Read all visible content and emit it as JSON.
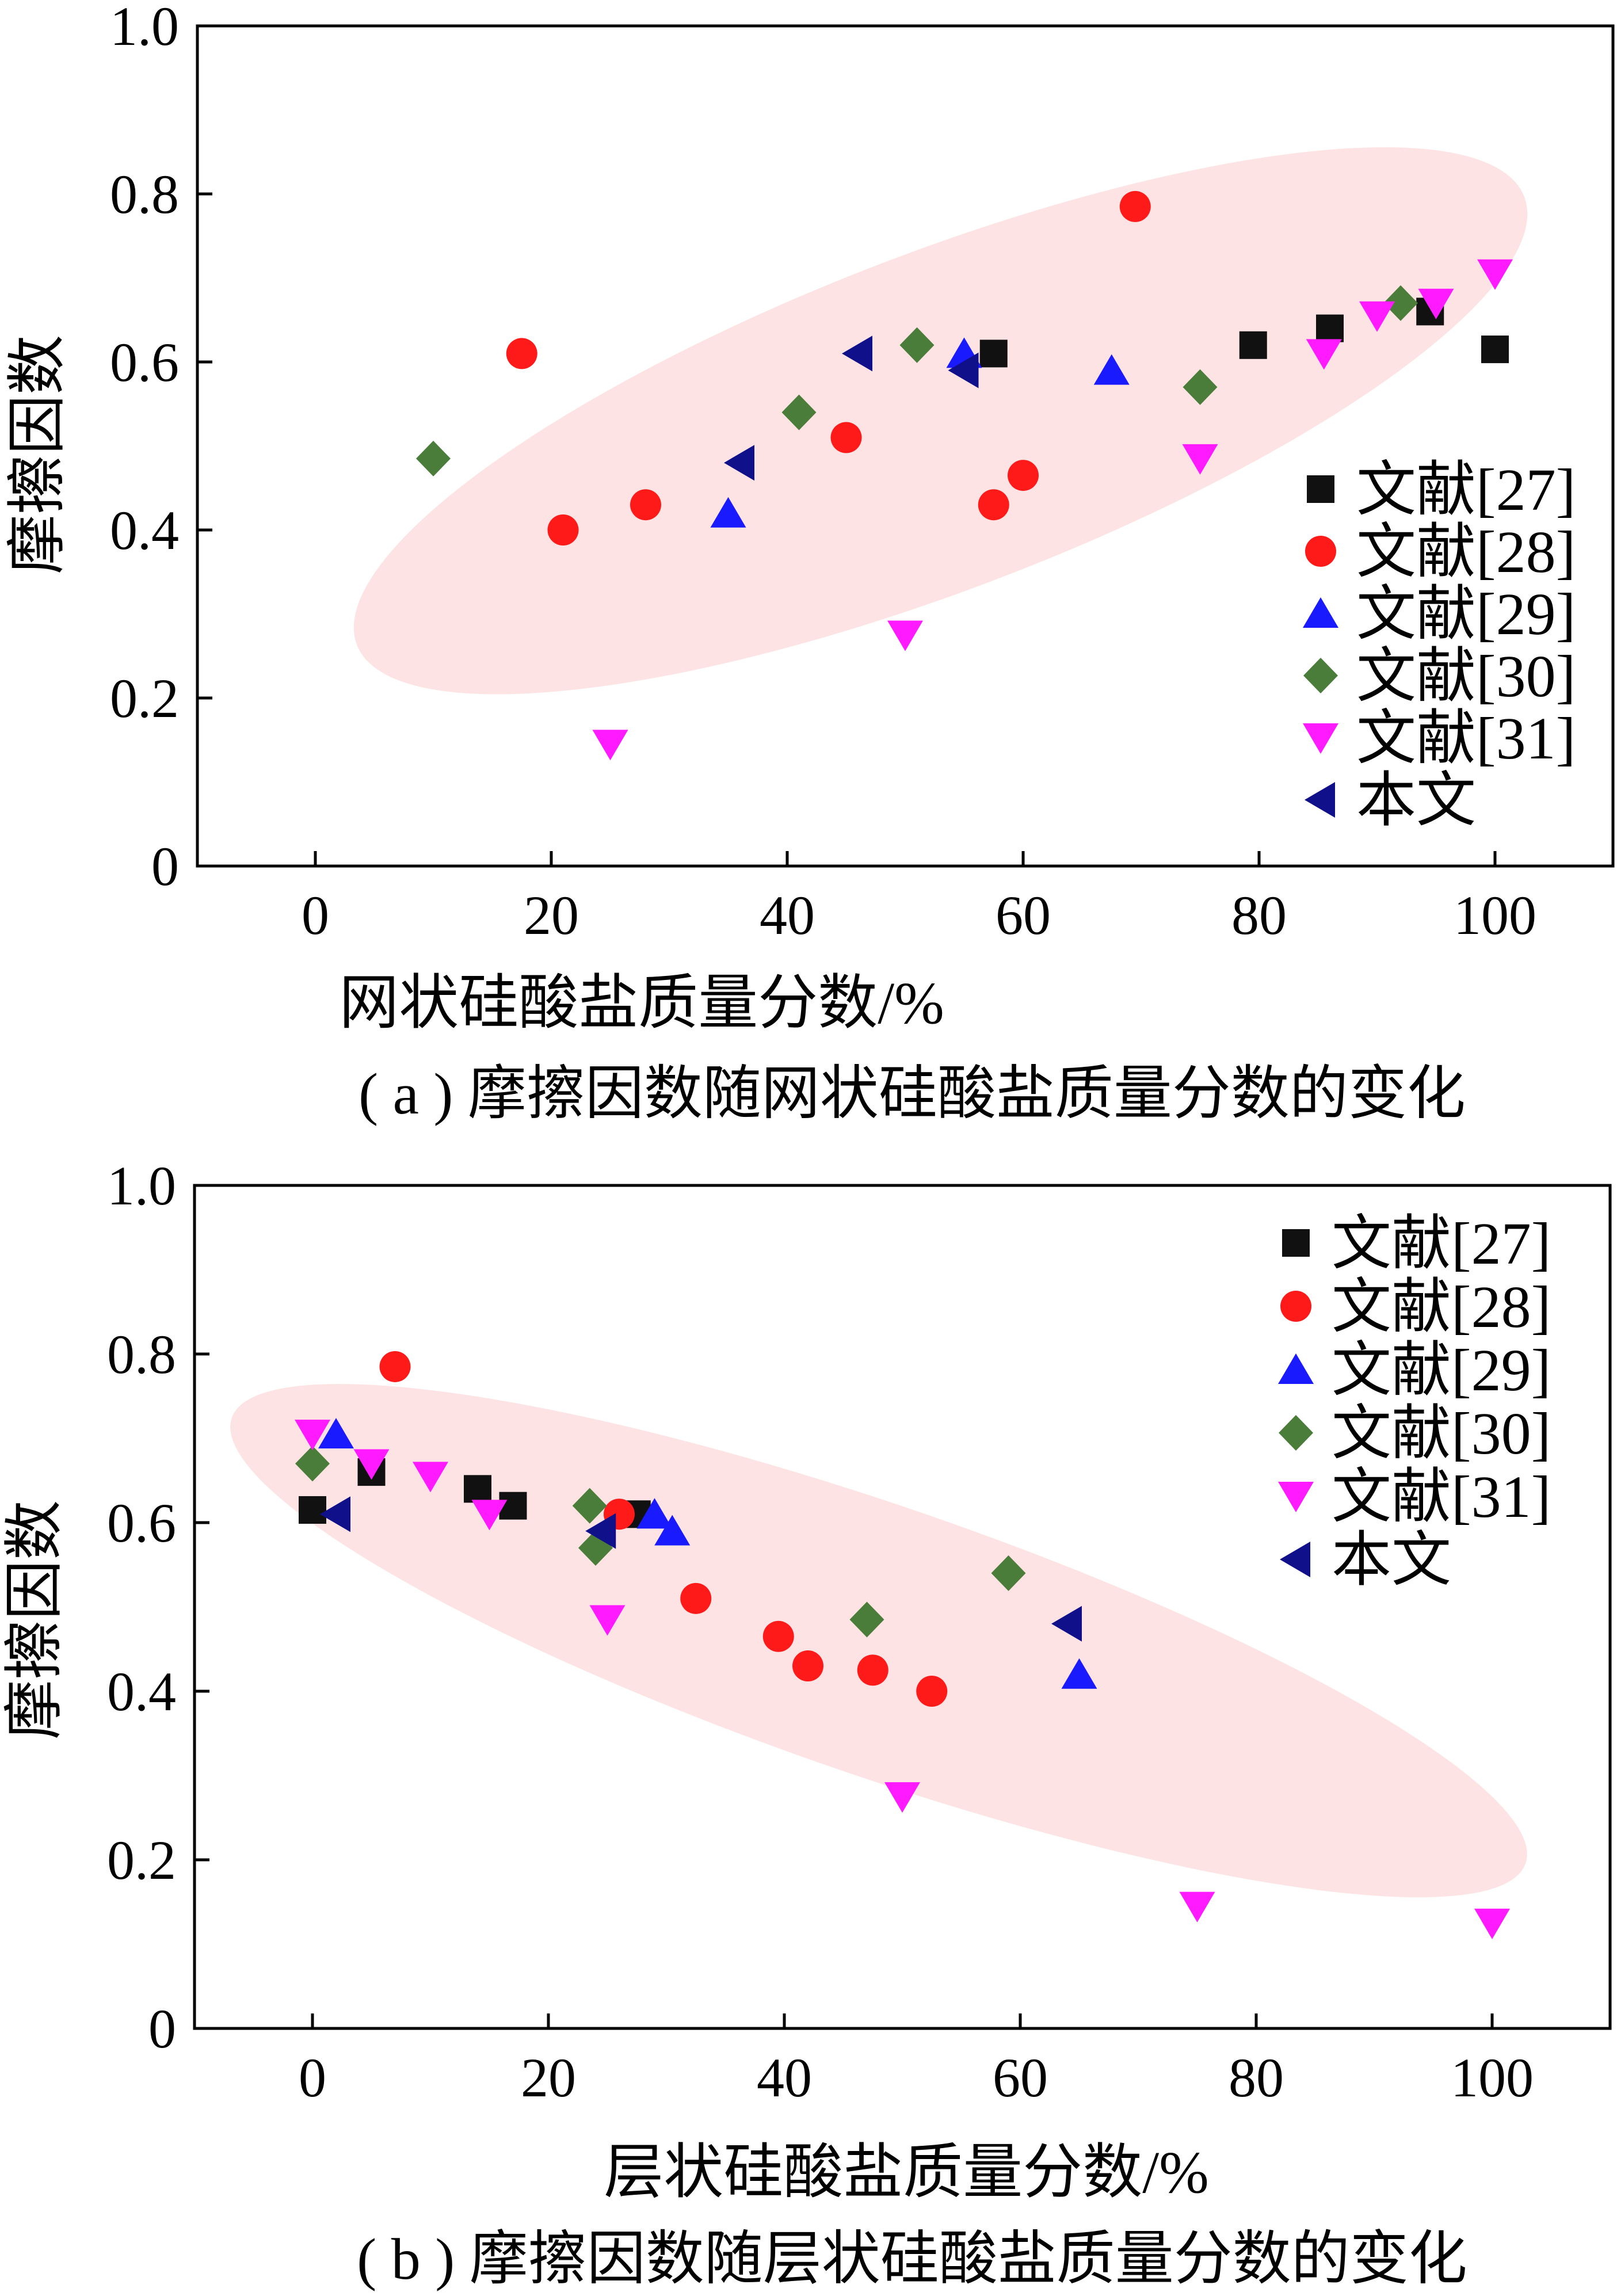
{
  "colors": {
    "ref27": "#111111",
    "ref28": "#ff1a1a",
    "ref29": "#1a1aff",
    "ref30": "#4a7d3a",
    "ref31": "#ff1aff",
    "this_work": "#10108a",
    "ellipse_fill": "#fde3e3",
    "axis": "#000000"
  },
  "chart_data": [
    {
      "type": "scatter",
      "title": "",
      "caption": "( a ) 摩擦因数随网状硅酸盐质量分数的变化",
      "xlabel": "网状硅酸盐质量分数/%",
      "ylabel": "摩擦因数",
      "xlim": [
        -10,
        110
      ],
      "ylim": [
        0,
        1.0
      ],
      "xticks": [
        "0",
        "20",
        "40",
        "60",
        "80",
        "100"
      ],
      "yticks": [
        "0",
        "0.2",
        "0.4",
        "0.6",
        "0.8",
        "1.0"
      ],
      "grid": false,
      "legend_position": "right",
      "series": [
        {
          "name": "文献[27]",
          "marker": "square",
          "points": [
            [
              57.5,
              0.61
            ],
            [
              79.5,
              0.62
            ],
            [
              86,
              0.64
            ],
            [
              94.5,
              0.66
            ],
            [
              100,
              0.615
            ]
          ]
        },
        {
          "name": "文献[28]",
          "marker": "circle",
          "points": [
            [
              17.5,
              0.61
            ],
            [
              21,
              0.4
            ],
            [
              28,
              0.43
            ],
            [
              45,
              0.51
            ],
            [
              57.5,
              0.43
            ],
            [
              60,
              0.465
            ],
            [
              69.5,
              0.785
            ]
          ]
        },
        {
          "name": "文献[29]",
          "marker": "triangle-up",
          "points": [
            [
              35,
              0.42
            ],
            [
              55,
              0.61
            ],
            [
              67.5,
              0.59
            ]
          ]
        },
        {
          "name": "文献[30]",
          "marker": "diamond",
          "points": [
            [
              10,
              0.485
            ],
            [
              41,
              0.54
            ],
            [
              51,
              0.62
            ],
            [
              75,
              0.57
            ],
            [
              92,
              0.67
            ]
          ]
        },
        {
          "name": "文献[31]",
          "marker": "triangle-down",
          "points": [
            [
              25,
              0.145
            ],
            [
              50,
              0.275
            ],
            [
              75,
              0.485
            ],
            [
              85.5,
              0.61
            ],
            [
              90,
              0.655
            ],
            [
              95,
              0.67
            ],
            [
              100,
              0.705
            ]
          ]
        },
        {
          "name": "本文",
          "marker": "triangle-left",
          "points": [
            [
              36,
              0.48
            ],
            [
              46,
              0.61
            ],
            [
              55,
              0.59
            ]
          ]
        }
      ],
      "highlight_ellipse": {
        "cx": 53,
        "cy": 0.53,
        "rx": 53,
        "ry": 0.2,
        "angle_deg": -21
      }
    },
    {
      "type": "scatter",
      "title": "",
      "caption": "( b ) 摩擦因数随层状硅酸盐质量分数的变化",
      "xlabel": "层状硅酸盐质量分数/%",
      "ylabel": "摩擦因数",
      "xlim": [
        -10,
        110
      ],
      "ylim": [
        0,
        1.0
      ],
      "xticks": [
        "0",
        "20",
        "40",
        "60",
        "80",
        "100"
      ],
      "yticks": [
        "0",
        "0.2",
        "0.4",
        "0.6",
        "0.8",
        "1.0"
      ],
      "grid": false,
      "legend_position": "top-right",
      "series": [
        {
          "name": "文献[27]",
          "marker": "square",
          "points": [
            [
              0,
              0.615
            ],
            [
              5,
              0.66
            ],
            [
              14,
              0.64
            ],
            [
              17,
              0.62
            ],
            [
              27.5,
              0.61
            ]
          ]
        },
        {
          "name": "文献[28]",
          "marker": "circle",
          "points": [
            [
              7,
              0.785
            ],
            [
              26,
              0.61
            ],
            [
              32.5,
              0.51
            ],
            [
              39.5,
              0.465
            ],
            [
              42,
              0.43
            ],
            [
              47.5,
              0.425
            ],
            [
              52.5,
              0.4
            ]
          ]
        },
        {
          "name": "文献[29]",
          "marker": "triangle-up",
          "points": [
            [
              2,
              0.705
            ],
            [
              29,
              0.61
            ],
            [
              30.5,
              0.59
            ],
            [
              65,
              0.42
            ]
          ]
        },
        {
          "name": "文献[30]",
          "marker": "diamond",
          "points": [
            [
              0,
              0.67
            ],
            [
              24,
              0.57
            ],
            [
              23.5,
              0.62
            ],
            [
              47,
              0.485
            ],
            [
              59,
              0.54
            ]
          ]
        },
        {
          "name": "文献[31]",
          "marker": "triangle-down",
          "points": [
            [
              0,
              0.705
            ],
            [
              5,
              0.67
            ],
            [
              10,
              0.655
            ],
            [
              15,
              0.61
            ],
            [
              25,
              0.485
            ],
            [
              50,
              0.275
            ],
            [
              75,
              0.145
            ],
            [
              100,
              0.125
            ]
          ]
        },
        {
          "name": "本文",
          "marker": "triangle-left",
          "points": [
            [
              2,
              0.61
            ],
            [
              24.5,
              0.59
            ],
            [
              64,
              0.48
            ]
          ]
        }
      ],
      "highlight_ellipse": {
        "cx": 48,
        "cy": 0.46,
        "rx": 58,
        "ry": 0.16,
        "angle_deg": 19
      }
    }
  ]
}
